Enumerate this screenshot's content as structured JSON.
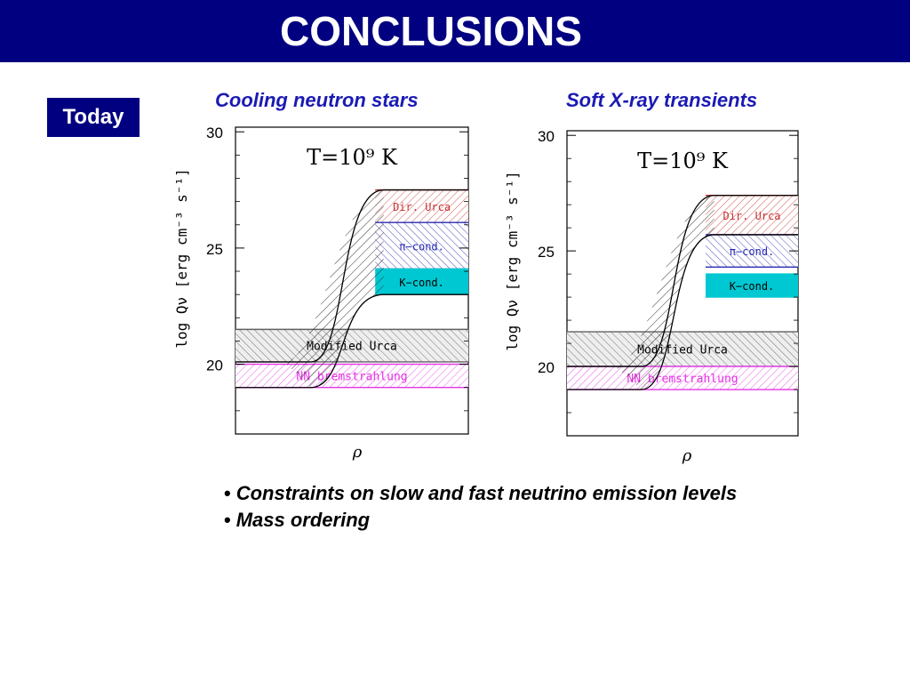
{
  "header": {
    "title": "CONCLUSIONS"
  },
  "badge": {
    "label": "Today"
  },
  "colors": {
    "header_bg": "#000080",
    "panel_title": "#1a1ab4",
    "dir_urca": "#c83232",
    "pion": "#2828b4",
    "kaon": "#00c8d2",
    "nn_brems": "#e632e6"
  },
  "panels": [
    {
      "title": "Cooling neutron stars"
    },
    {
      "title": "Soft X-ray transients"
    }
  ],
  "chart_data": [
    {
      "type": "area",
      "title": "Cooling neutron stars",
      "annotation": "T=10⁹ K",
      "xlabel": "ρ",
      "ylabel": "log Qν [erg cm⁻³ s⁻¹]",
      "yticks": [
        30,
        25,
        20
      ],
      "ylim": [
        17,
        30.2
      ],
      "bands": [
        {
          "name": "Dir. Urca",
          "low": 26.1,
          "high": 27.5,
          "color": "#c83232"
        },
        {
          "name": "π−cond.",
          "low": 24.1,
          "high": 26.1,
          "color": "#2828b4"
        },
        {
          "name": "K−cond.",
          "low": 23.0,
          "high": 24.1,
          "color": "#00c8d2"
        },
        {
          "name": "Modified Urca",
          "low": 20.1,
          "high": 21.5,
          "color": "#606060"
        },
        {
          "name": "NN bremstrahlung",
          "low": 19.0,
          "high": 20.0,
          "color": "#e632e6"
        }
      ],
      "transition": {
        "low_before": 19.0,
        "high_before": 20.1,
        "low_after": 23.0,
        "high_after": 27.5
      }
    },
    {
      "type": "area",
      "title": "Soft X-ray transients",
      "annotation": "T=10⁹ K",
      "xlabel": "ρ",
      "ylabel": "log Qν [erg cm⁻³ s⁻¹]",
      "yticks": [
        30,
        25,
        20
      ],
      "ylim": [
        17,
        30.2
      ],
      "bands": [
        {
          "name": "Dir. Urca",
          "low": 25.7,
          "high": 27.4,
          "color": "#c83232"
        },
        {
          "name": "π−cond.",
          "low": 24.3,
          "high": 25.7,
          "color": "#2828b4"
        },
        {
          "name": "K−cond.",
          "low": 23.0,
          "high": 24.0,
          "color": "#00c8d2"
        },
        {
          "name": "Modified Urca",
          "low": 20.0,
          "high": 21.5,
          "color": "#606060"
        },
        {
          "name": "NN bremstrahlung",
          "low": 19.0,
          "high": 20.0,
          "color": "#e632e6"
        }
      ],
      "transition": {
        "low_before": 19.0,
        "high_before": 20.0,
        "low_after": 25.7,
        "high_after": 27.4
      }
    }
  ],
  "bullets": [
    "Constraints on slow and fast neutrino emission levels",
    "Mass ordering"
  ]
}
